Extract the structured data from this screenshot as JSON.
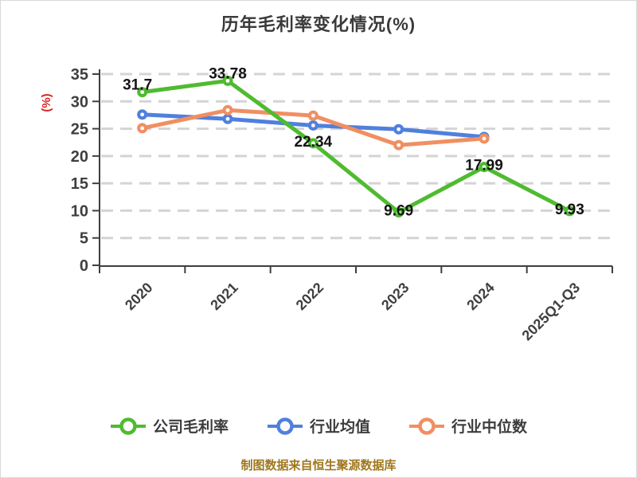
{
  "chart_data": {
    "type": "line",
    "title": "历年毛利率变化情况(%)",
    "ylabel": "(%)",
    "ylabel_color": "#dd2222",
    "ylim": [
      0,
      35
    ],
    "ytick_step": 5,
    "xtick_rotation_deg": 45,
    "grid": "horizontal-dashed",
    "grid_color": "#d4d4d4",
    "axis_color": "#3f3f3f",
    "legend_position": "bottom",
    "categories": [
      "2020",
      "2021",
      "2022",
      "2023",
      "2024",
      "2025Q1-Q3"
    ],
    "series": [
      {
        "name": "公司毛利率",
        "color": "#4fbb30",
        "values": [
          31.7,
          33.78,
          22.34,
          9.69,
          17.99,
          9.93
        ],
        "labels": [
          "31.7",
          "33.78",
          "22.34",
          "9.69",
          "17.99",
          "9.93"
        ]
      },
      {
        "name": "行业均值",
        "color": "#5080dd",
        "values": [
          27.6,
          26.8,
          25.6,
          24.9,
          23.5,
          null
        ]
      },
      {
        "name": "行业中位数",
        "color": "#f08f62",
        "values": [
          25.1,
          28.4,
          27.4,
          22.0,
          23.2,
          null
        ]
      }
    ]
  },
  "footer": {
    "text": "制图数据来自恒生聚源数据库"
  }
}
